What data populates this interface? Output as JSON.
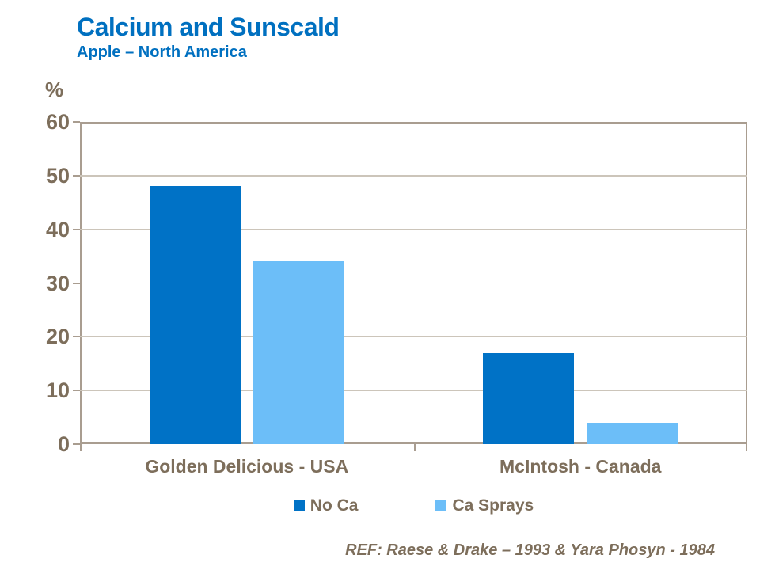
{
  "header": {
    "title": "Calcium and Sunscald",
    "subtitle": "Apple – North America",
    "title_color": "#0070C0"
  },
  "chart_data": {
    "type": "bar",
    "title": "Calcium and Sunscald",
    "subtitle": "Apple – North America",
    "xlabel": "",
    "ylabel": "%",
    "ylim": [
      0,
      60
    ],
    "yticks": [
      0,
      10,
      20,
      30,
      40,
      50,
      60
    ],
    "categories": [
      "Golden Delicious - USA",
      "McIntosh - Canada"
    ],
    "series": [
      {
        "name": "No Ca",
        "color": "#0072C6",
        "values": [
          48,
          17
        ]
      },
      {
        "name": "Ca Sprays",
        "color": "#6CBEF8",
        "values": [
          34,
          4
        ]
      }
    ],
    "grid": true,
    "legend_position": "bottom"
  },
  "footer": {
    "reference": "REF: Raese & Drake – 1993 & Yara Phosyn - 1984"
  },
  "colors": {
    "axis_text": "#7D6E5B",
    "axis_line": "#A99D90",
    "gridline": "#CCC5BA",
    "background": "#FFFFFF"
  }
}
